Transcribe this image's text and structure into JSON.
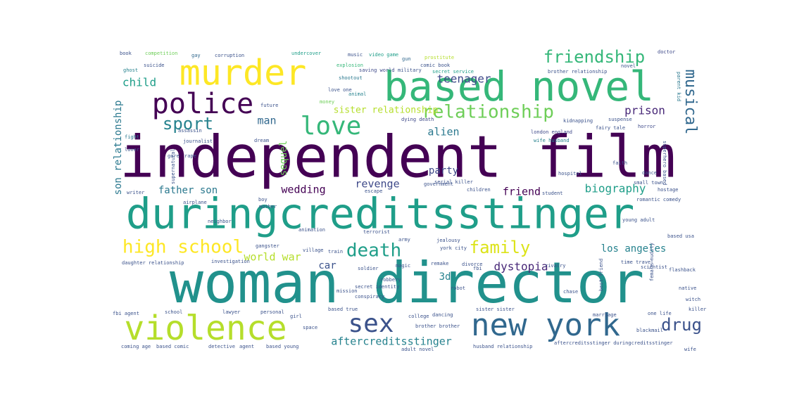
{
  "words": [
    {
      "text": "independent film",
      "color": "#440154"
    },
    {
      "text": "woman director",
      "color": "#21918c"
    },
    {
      "text": "duringcreditsstinger",
      "color": "#1f9e89"
    },
    {
      "text": "based novel",
      "color": "#35b779"
    },
    {
      "text": "murder",
      "color": "#fde725"
    },
    {
      "text": "violence",
      "color": "#b5de2b"
    },
    {
      "text": "new york",
      "color": "#31688e"
    },
    {
      "text": "police",
      "color": "#440154"
    },
    {
      "text": "sex",
      "color": "#3b528b"
    },
    {
      "text": "love",
      "color": "#35b779"
    },
    {
      "text": "relationship",
      "color": "#6ece58"
    },
    {
      "text": "high school",
      "color": "#fde725"
    },
    {
      "text": "death",
      "color": "#1f9e89"
    },
    {
      "text": "friendship",
      "color": "#35b779"
    },
    {
      "text": "family",
      "color": "#dce319"
    },
    {
      "text": "sport",
      "color": "#26828e"
    },
    {
      "text": "drug",
      "color": "#3b528b"
    },
    {
      "text": "musical",
      "color": "#31688e"
    },
    {
      "text": "teenager",
      "color": "#3e4989"
    },
    {
      "text": "dystopia",
      "color": "#482878"
    },
    {
      "text": "prison",
      "color": "#482878"
    },
    {
      "text": "biography",
      "color": "#1f9e89"
    },
    {
      "text": "los angeles",
      "color": "#26828e"
    },
    {
      "text": "aftercreditsstinger",
      "color": "#26828e"
    },
    {
      "text": "son relationship",
      "color": "#2a788e"
    },
    {
      "text": "sister relationship",
      "color": "#b5de2b"
    },
    {
      "text": "world war",
      "color": "#b5de2b"
    },
    {
      "text": "sequel",
      "color": "#6ece58"
    },
    {
      "text": "wedding",
      "color": "#440154"
    },
    {
      "text": "revenge",
      "color": "#3e4989"
    },
    {
      "text": "alien",
      "color": "#2a788e"
    },
    {
      "text": "child",
      "color": "#1f9e89"
    },
    {
      "text": "man",
      "color": "#31688e"
    },
    {
      "text": "father son",
      "color": "#2a788e"
    },
    {
      "text": "party",
      "color": "#3e4989"
    },
    {
      "text": "friend",
      "color": "#440154"
    },
    {
      "text": "car",
      "color": "#3b528b"
    },
    {
      "text": "3d",
      "color": "#26828e"
    },
    {
      "text": "book",
      "color": "#3b528b"
    },
    {
      "text": "competition",
      "color": "#6ece58"
    },
    {
      "text": "gay",
      "color": "#31688e"
    },
    {
      "text": "corruption",
      "color": "#3b528b"
    },
    {
      "text": "undercover",
      "color": "#1f9e89"
    },
    {
      "text": "music",
      "color": "#3b528b"
    },
    {
      "text": "video game",
      "color": "#1f9e89"
    },
    {
      "text": "gun",
      "color": "#31688e"
    },
    {
      "text": "prostitute",
      "color": "#b5de2b"
    },
    {
      "text": "doctor",
      "color": "#3e4989"
    },
    {
      "text": "ghost",
      "color": "#26828e"
    },
    {
      "text": "suicide",
      "color": "#3b528b"
    },
    {
      "text": "explosion",
      "color": "#35b779"
    },
    {
      "text": "comic book",
      "color": "#3b528b"
    },
    {
      "text": "brother relationship",
      "color": "#3b528b"
    },
    {
      "text": "parent kid",
      "color": "#2a788e"
    },
    {
      "text": "novel",
      "color": "#3b528b"
    },
    {
      "text": "saving world",
      "color": "#3e4989"
    },
    {
      "text": "military",
      "color": "#3b528b"
    },
    {
      "text": "secret service",
      "color": "#1f9e89"
    },
    {
      "text": "shootout",
      "color": "#2a788e"
    },
    {
      "text": "love one",
      "color": "#3b528b"
    },
    {
      "text": "animal",
      "color": "#26828e"
    },
    {
      "text": "money",
      "color": "#6ece58"
    },
    {
      "text": "dying death",
      "color": "#3e4989"
    },
    {
      "text": "dream",
      "color": "#3b528b"
    },
    {
      "text": "future",
      "color": "#3b528b"
    },
    {
      "text": "kidnapping",
      "color": "#3b528b"
    },
    {
      "text": "fairy tale",
      "color": "#3b528b"
    },
    {
      "text": "suspense",
      "color": "#3b528b"
    },
    {
      "text": "horror",
      "color": "#3e4989"
    },
    {
      "text": "fight",
      "color": "#2a788e"
    },
    {
      "text": "lover",
      "color": "#3b528b"
    },
    {
      "text": "assassin",
      "color": "#3b528b"
    },
    {
      "text": "journalist",
      "color": "#3b528b"
    },
    {
      "text": "gore",
      "color": "#3b528b"
    },
    {
      "text": "rape",
      "color": "#3b528b"
    },
    {
      "text": "london england",
      "color": "#3e4989"
    },
    {
      "text": "wife husband",
      "color": "#26828e"
    },
    {
      "text": "supernatural",
      "color": "#3b528b"
    },
    {
      "text": "hospital",
      "color": "#3b528b"
    },
    {
      "text": "government",
      "color": "#3b528b"
    },
    {
      "text": "faith",
      "color": "#3b528b"
    },
    {
      "text": "dance",
      "color": "#3b528b"
    },
    {
      "text": "superhero based",
      "color": "#3b528b"
    },
    {
      "text": "small town",
      "color": "#3b528b"
    },
    {
      "text": "hostage",
      "color": "#3b528b"
    },
    {
      "text": "romantic comedy",
      "color": "#3b528b"
    },
    {
      "text": "serial killer",
      "color": "#3b528b"
    },
    {
      "text": "writer",
      "color": "#3b528b"
    },
    {
      "text": "airplane",
      "color": "#3b528b"
    },
    {
      "text": "escape",
      "color": "#3b528b"
    },
    {
      "text": "children",
      "color": "#3b528b"
    },
    {
      "text": "student",
      "color": "#3b528b"
    },
    {
      "text": "neighbor",
      "color": "#3b528b"
    },
    {
      "text": "young adult",
      "color": "#3b528b"
    },
    {
      "text": "boy",
      "color": "#3b528b"
    },
    {
      "text": "mother",
      "color": "#3b528b"
    },
    {
      "text": "animation",
      "color": "#3b528b"
    },
    {
      "text": "gangster",
      "color": "#3b528b"
    },
    {
      "text": "village",
      "color": "#3b528b"
    },
    {
      "text": "terrorist",
      "color": "#3b528b"
    },
    {
      "text": "army",
      "color": "#3b528b"
    },
    {
      "text": "jealousy",
      "color": "#3b528b"
    },
    {
      "text": "york city",
      "color": "#3b528b"
    },
    {
      "text": "based usa",
      "color": "#3b528b"
    },
    {
      "text": "investigation",
      "color": "#3b528b"
    },
    {
      "text": "daughter relationship",
      "color": "#3b528b"
    },
    {
      "text": "train",
      "color": "#3b528b"
    },
    {
      "text": "soldier",
      "color": "#3b528b"
    },
    {
      "text": "magic",
      "color": "#3b528b"
    },
    {
      "text": "remake",
      "color": "#3b528b"
    },
    {
      "text": "divorce",
      "color": "#3b528b"
    },
    {
      "text": "fbi",
      "color": "#3b528b"
    },
    {
      "text": "rivalry",
      "color": "#3b528b"
    },
    {
      "text": "time travel",
      "color": "#3b528b"
    },
    {
      "text": "scientist",
      "color": "#3b528b"
    },
    {
      "text": "flashback",
      "color": "#3b528b"
    },
    {
      "text": "robbery",
      "color": "#3b528b"
    },
    {
      "text": "secret identity",
      "color": "#3b528b"
    },
    {
      "text": "conspiracy",
      "color": "#3b528b"
    },
    {
      "text": "robot",
      "color": "#3b528b"
    },
    {
      "text": "chase",
      "color": "#3b528b"
    },
    {
      "text": "best friend",
      "color": "#3b528b"
    },
    {
      "text": "female nudity",
      "color": "#3b528b"
    },
    {
      "text": "mission",
      "color": "#3b528b"
    },
    {
      "text": "based true",
      "color": "#3b528b"
    },
    {
      "text": "fbi agent",
      "color": "#3b528b"
    },
    {
      "text": "school",
      "color": "#3b528b"
    },
    {
      "text": "lawyer",
      "color": "#3b528b"
    },
    {
      "text": "personal",
      "color": "#3b528b"
    },
    {
      "text": "girl",
      "color": "#3b528b"
    },
    {
      "text": "college",
      "color": "#3b528b"
    },
    {
      "text": "dancing",
      "color": "#3b528b"
    },
    {
      "text": "sister sister",
      "color": "#3b528b"
    },
    {
      "text": "marriage",
      "color": "#3b528b"
    },
    {
      "text": "one life",
      "color": "#3b528b"
    },
    {
      "text": "killer",
      "color": "#3b528b"
    },
    {
      "text": "brother brother",
      "color": "#3b528b"
    },
    {
      "text": "space",
      "color": "#3b528b"
    },
    {
      "text": "blackmail",
      "color": "#3b528b"
    },
    {
      "text": "coming age",
      "color": "#3b528b"
    },
    {
      "text": "based comic",
      "color": "#3b528b"
    },
    {
      "text": "detective",
      "color": "#3b528b"
    },
    {
      "text": "agent",
      "color": "#3b528b"
    },
    {
      "text": "based young",
      "color": "#3b528b"
    },
    {
      "text": "adult novel",
      "color": "#3b528b"
    },
    {
      "text": "husband relationship",
      "color": "#3b528b"
    },
    {
      "text": "aftercreditsstinger duringcreditsstinger",
      "color": "#3b528b"
    },
    {
      "text": "wife",
      "color": "#3b528b"
    },
    {
      "text": "native",
      "color": "#3b528b"
    },
    {
      "text": "witch",
      "color": "#3b528b"
    },
    {
      "text": "american football",
      "color": "#3b528b"
    }
  ]
}
